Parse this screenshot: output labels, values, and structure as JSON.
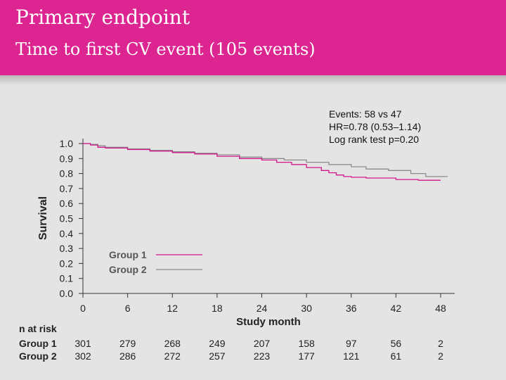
{
  "slide": {
    "title": "Primary endpoint",
    "subtitle": "Time to first CV event (105 events)"
  },
  "stats": [
    "Events: 58 vs 47",
    "HR=0.78 (0.53–1.14)",
    "Log rank test p=0.20"
  ],
  "colors": {
    "header": "#dc2590",
    "group1": "#d4168c",
    "group2": "#8c8c8c"
  },
  "chart_data": {
    "type": "line",
    "title": "",
    "xlabel": "Study month",
    "ylabel": "Survival",
    "xlim": [
      0,
      48
    ],
    "ylim": [
      0,
      1.0
    ],
    "x_ticks": [
      "0",
      "6",
      "12",
      "18",
      "24",
      "30",
      "36",
      "42",
      "48"
    ],
    "y_ticks": [
      "0.0",
      "0.1",
      "0.2",
      "0.3",
      "0.4",
      "0.5",
      "0.6",
      "0.7",
      "0.8",
      "0.9",
      "1.0"
    ],
    "legend_position": "lower-left",
    "series": [
      {
        "name": "Group 1",
        "color": "#d4168c",
        "x": [
          0,
          1,
          2,
          3,
          6,
          9,
          12,
          15,
          18,
          21,
          24,
          26,
          28,
          30,
          32,
          33,
          34,
          35,
          36,
          38,
          42,
          45,
          48
        ],
        "y": [
          1.0,
          0.99,
          0.975,
          0.97,
          0.96,
          0.95,
          0.94,
          0.93,
          0.915,
          0.9,
          0.89,
          0.875,
          0.86,
          0.84,
          0.82,
          0.805,
          0.79,
          0.78,
          0.775,
          0.77,
          0.76,
          0.755,
          0.755
        ]
      },
      {
        "name": "Group 2",
        "color": "#8c8c8c",
        "x": [
          0,
          1,
          2,
          3,
          6,
          9,
          12,
          15,
          18,
          21,
          24,
          27,
          30,
          33,
          36,
          38,
          41,
          44,
          46,
          49
        ],
        "y": [
          1.0,
          0.995,
          0.985,
          0.975,
          0.965,
          0.955,
          0.945,
          0.935,
          0.925,
          0.91,
          0.9,
          0.89,
          0.875,
          0.86,
          0.845,
          0.83,
          0.82,
          0.8,
          0.78,
          0.78
        ]
      }
    ],
    "n_at_risk": {
      "label": "n at risk",
      "rows": [
        {
          "group": "Group 1",
          "values": [
            "301",
            "279",
            "268",
            "249",
            "207",
            "158",
            "97",
            "56",
            "2"
          ]
        },
        {
          "group": "Group 2",
          "values": [
            "302",
            "286",
            "272",
            "257",
            "223",
            "177",
            "121",
            "61",
            "2"
          ]
        }
      ]
    }
  }
}
